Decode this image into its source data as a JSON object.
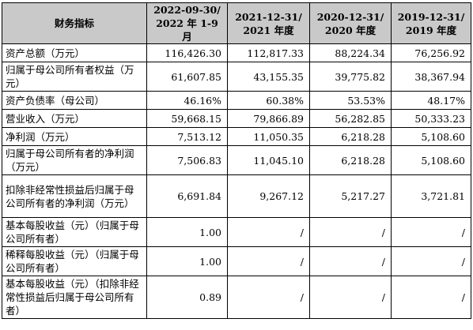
{
  "table": {
    "headers": [
      {
        "line1": "财务指标",
        "line2": ""
      },
      {
        "line1": "2022-09-30/",
        "line2": "2022 年 1-9 月"
      },
      {
        "line1": "2021-12-31/",
        "line2": "2021 年度"
      },
      {
        "line1": "2020-12-31/",
        "line2": "2020 年度"
      },
      {
        "line1": "2019-12-31/",
        "line2": "2019 年度"
      }
    ],
    "rows": [
      {
        "label": "资产总额（万元）",
        "values": [
          "116,426.30",
          "112,817.33",
          "88,224.34",
          "76,256.92"
        ]
      },
      {
        "label": "归属于母公司所有者权益（万元）",
        "values": [
          "61,607.85",
          "43,155.35",
          "39,775.82",
          "38,367.94"
        ]
      },
      {
        "label": "资产负债率（母公司）",
        "values": [
          "46.16%",
          "60.38%",
          "53.53%",
          "48.17%"
        ]
      },
      {
        "label": "营业收入（万元）",
        "values": [
          "59,668.15",
          "79,866.89",
          "56,282.85",
          "50,333.23"
        ]
      },
      {
        "label": "净利润（万元）",
        "values": [
          "7,513.12",
          "11,050.35",
          "6,218.28",
          "5,108.60"
        ]
      },
      {
        "label": "归属于母公司所有者的净利润（万元）",
        "values": [
          "7,506.83",
          "11,045.10",
          "6,218.28",
          "5,108.60"
        ]
      },
      {
        "label": "扣除非经常性损益后归属于母公司所有者的净利润（万元）",
        "values": [
          "6,691.84",
          "9,267.12",
          "5,217.27",
          "3,721.81"
        ]
      },
      {
        "label": "基本每股收益（元）（归属于母公司所有者）",
        "values": [
          "1.00",
          "/",
          "/",
          "/"
        ]
      },
      {
        "label": "稀释每股收益（元）（归属于母公司所有者）",
        "values": [
          "1.00",
          "/",
          "/",
          "/"
        ]
      },
      {
        "label": "基本每股收益（元）（扣除非经常性损益后归属于母公司所有者）",
        "values": [
          "0.89",
          "/",
          "/",
          "/"
        ]
      }
    ]
  }
}
